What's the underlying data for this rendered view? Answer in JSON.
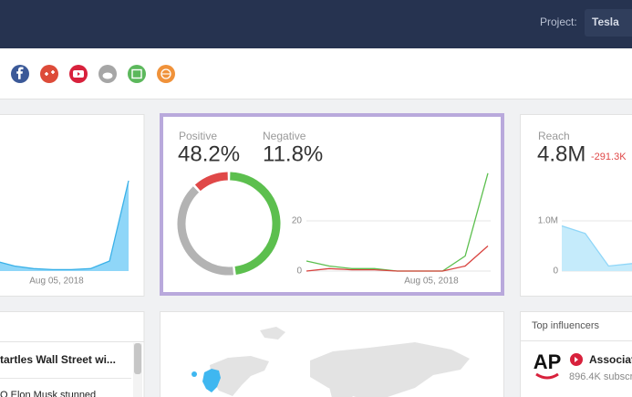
{
  "header": {
    "project_label": "Project:",
    "project": "Tesla"
  },
  "mentions_chart": {
    "x_label": "Aug 05, 2018",
    "values": [
      2,
      1,
      0.5,
      0.3,
      0.3,
      0.5,
      2,
      18
    ],
    "ylim": [
      0,
      20
    ]
  },
  "sentiment": {
    "positive": {
      "label": "Positive",
      "value": 48.2,
      "value_label": "48.2%",
      "color": "#5cbf4e"
    },
    "negative": {
      "label": "Negative",
      "value": 11.8,
      "value_label": "11.8%",
      "color": "#e04848"
    },
    "chart": {
      "x_label": "Aug 05, 2018",
      "ylim": [
        0,
        40
      ],
      "yticks": [
        0,
        20
      ],
      "series": [
        {
          "name": "positive",
          "color": "#5cbf4e",
          "values": [
            4,
            2,
            1,
            1,
            0,
            0,
            0,
            6,
            39
          ]
        },
        {
          "name": "negative",
          "color": "#d9433f",
          "values": [
            0,
            1,
            0.5,
            0.5,
            0,
            0,
            0,
            2,
            10
          ]
        }
      ]
    }
  },
  "reach": {
    "label": "Reach",
    "value": "4.8M",
    "change": "-291.3K",
    "chart": {
      "values": [
        900000,
        750000,
        100000,
        150000
      ],
      "ylim": [
        0,
        1000000
      ],
      "yticks": [
        0,
        {
          "value": 1000000,
          "label": "1.0M"
        }
      ]
    }
  },
  "articles": {
    "items": [
      "tartles Wall Street wi...",
      "O Elon Musk stunned"
    ]
  },
  "influencers": {
    "title": "Top influencers",
    "items": [
      {
        "logo": "AP",
        "name": "Associat",
        "subscribers": "896.4K subscr"
      }
    ]
  }
}
